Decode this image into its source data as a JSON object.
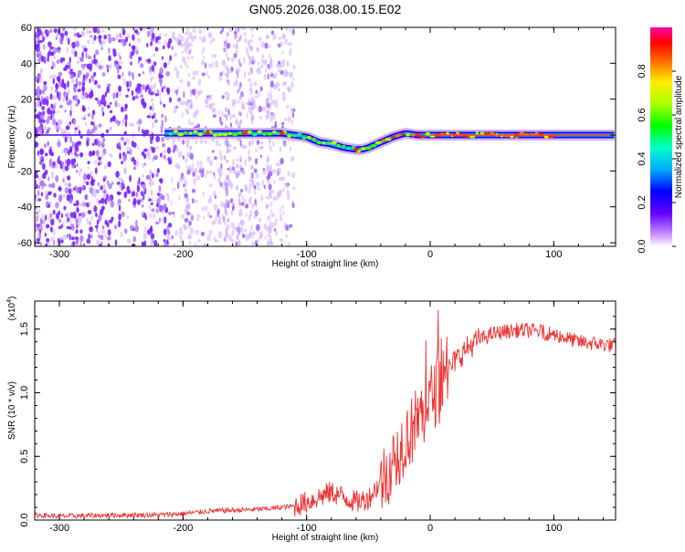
{
  "figure_title": "GN05.2026.038.00.15.E02",
  "chart_data": [
    {
      "type": "heatmap",
      "title": "GN05.2026.038.00.15.E02",
      "xlabel": "Height of straight line (km)",
      "ylabel": "Frequency (Hz)",
      "xlim": [
        -320,
        150
      ],
      "ylim": [
        -62,
        60
      ],
      "x_ticks": [
        -300,
        -200,
        -100,
        0,
        100
      ],
      "y_ticks": [
        -60,
        -40,
        -20,
        0,
        20,
        40,
        60
      ],
      "colorbar": {
        "label": "Normalized spectral amplitude",
        "range": [
          0,
          1
        ],
        "ticks": [
          0.0,
          0.2,
          0.4,
          0.6,
          0.8
        ]
      },
      "ridge_frequency": {
        "x": [
          -210,
          -150,
          -120,
          -100,
          -90,
          -80,
          -70,
          -60,
          -55,
          -50,
          -40,
          -30,
          -20,
          -10,
          0,
          20,
          60,
          100,
          150
        ],
        "freq": [
          1,
          1,
          1,
          -1,
          -4,
          -5,
          -7,
          -8,
          -8,
          -7,
          -4,
          -1,
          1,
          0,
          0,
          0,
          0,
          0,
          0
        ]
      }
    },
    {
      "type": "line",
      "xlabel": "Height of straight line (km)",
      "ylabel": "SNR (10 * v/v)",
      "y_scale_label": "(x10",
      "y_scale_exponent": "4",
      "xlim": [
        -320,
        150
      ],
      "ylim": [
        0,
        1.72
      ],
      "x_ticks": [
        -300,
        -200,
        -100,
        0,
        100
      ],
      "y_ticks": [
        0.0,
        0.5,
        1.0,
        1.5
      ],
      "y_tick_labels": [
        "0.0",
        "0.5",
        "1.0",
        "1.5"
      ],
      "series": [
        {
          "name": "SNR",
          "color": "#ee3333",
          "x": [
            -320,
            -300,
            -250,
            -220,
            -200,
            -180,
            -150,
            -130,
            -110,
            -100,
            -90,
            -80,
            -70,
            -60,
            -50,
            -40,
            -30,
            -25,
            -20,
            -15,
            -10,
            -5,
            0,
            5,
            10,
            15,
            20,
            30,
            40,
            50,
            60,
            70,
            80,
            90,
            100,
            110,
            120,
            130,
            140,
            150
          ],
          "values": [
            0.04,
            0.03,
            0.04,
            0.04,
            0.05,
            0.07,
            0.08,
            0.09,
            0.11,
            0.14,
            0.18,
            0.22,
            0.18,
            0.14,
            0.17,
            0.3,
            0.45,
            0.55,
            0.65,
            0.7,
            0.8,
            0.85,
            0.95,
            1.02,
            1.1,
            1.18,
            1.25,
            1.35,
            1.42,
            1.46,
            1.48,
            1.49,
            1.49,
            1.48,
            1.46,
            1.43,
            1.4,
            1.39,
            1.38,
            1.37
          ]
        }
      ]
    }
  ]
}
